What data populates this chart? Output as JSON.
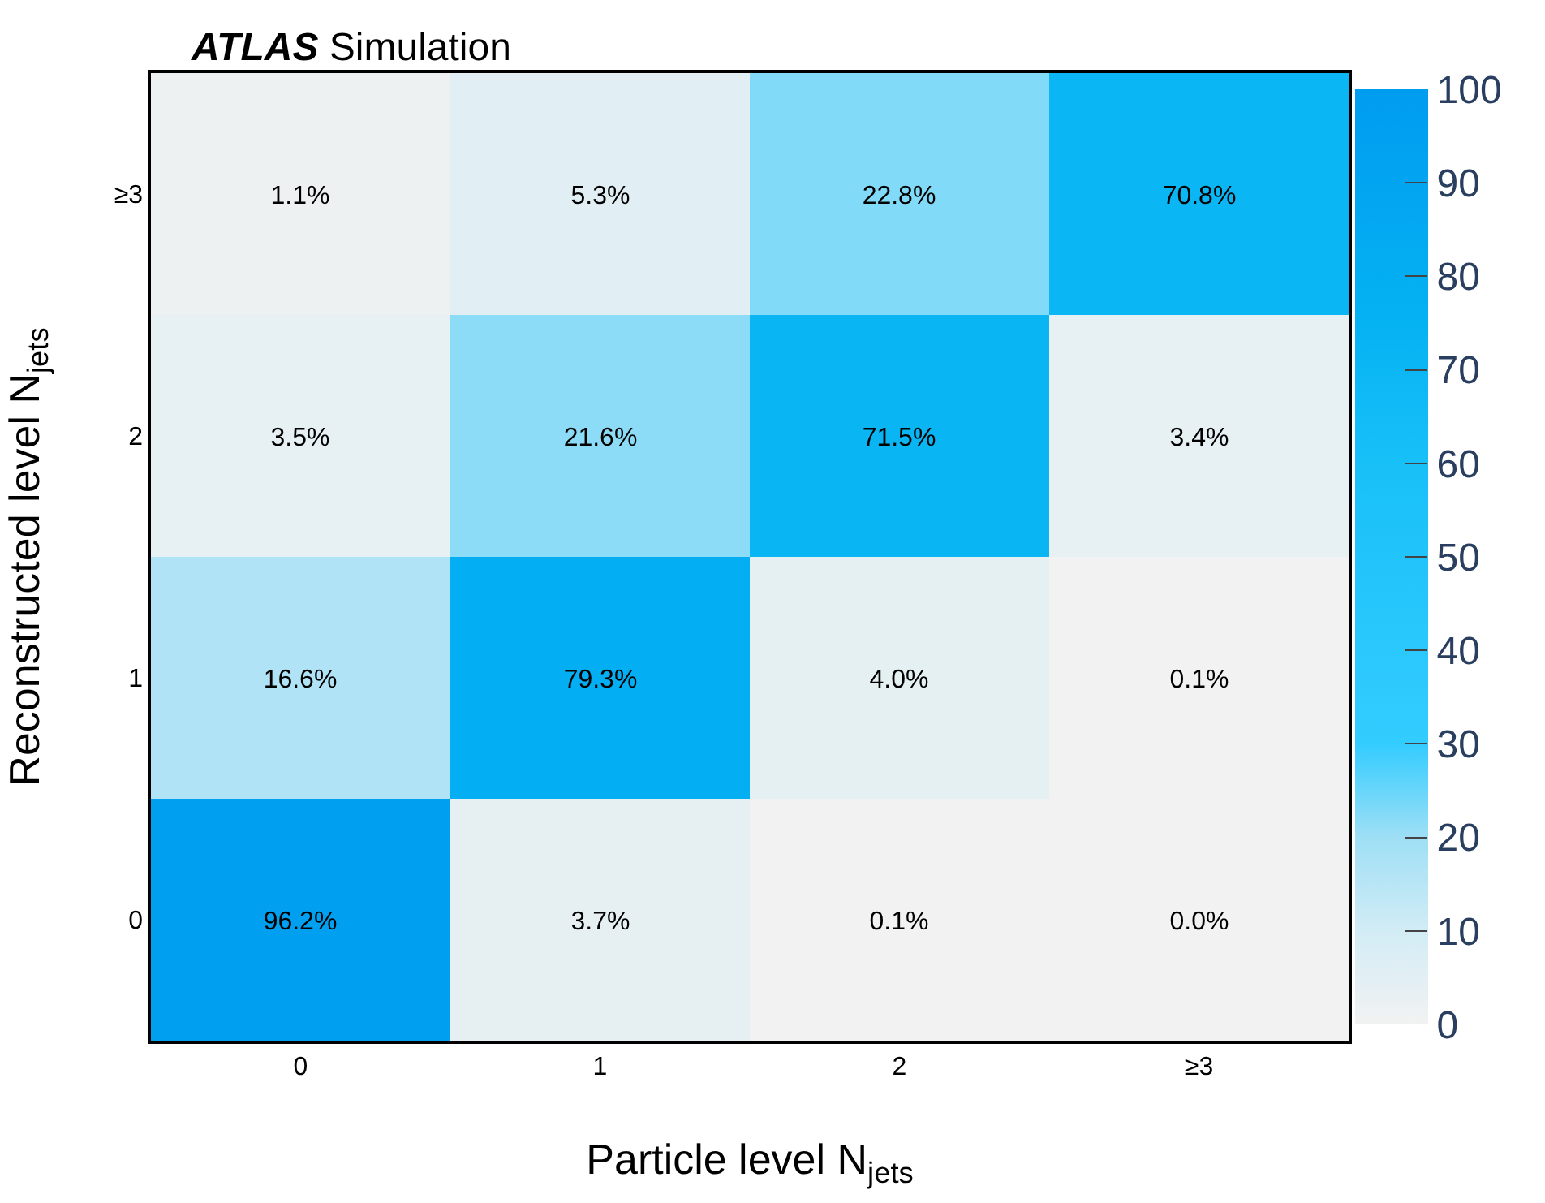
{
  "chart_data": {
    "type": "heatmap",
    "title": "ATLAS Simulation",
    "xlabel": "Particle level N$_{jets}$",
    "ylabel": "Reconstructed level N$_{jets}$",
    "categories": [
      "0",
      "1",
      "2",
      "≥3"
    ],
    "y_categories": [
      "≥3",
      "2",
      "1",
      "0"
    ],
    "cells": [
      [
        1.1,
        5.3,
        22.8,
        70.8
      ],
      [
        3.5,
        21.6,
        71.5,
        3.4
      ],
      [
        16.6,
        79.3,
        4.0,
        0.1
      ],
      [
        96.2,
        3.7,
        0.1,
        0.0
      ]
    ],
    "cell_labels": [
      [
        "1.1%",
        "5.3%",
        "22.8%",
        "70.8%"
      ],
      [
        "3.5%",
        "21.6%",
        "71.5%",
        "3.4%"
      ],
      [
        "16.6%",
        "79.3%",
        "4.0%",
        "0.1%"
      ],
      [
        "96.2%",
        "3.7%",
        "0.1%",
        "0.0%"
      ]
    ],
    "clim": [
      0,
      100
    ],
    "cticks": [
      0,
      10,
      20,
      30,
      40,
      50,
      60,
      70,
      80,
      90,
      100
    ]
  }
}
